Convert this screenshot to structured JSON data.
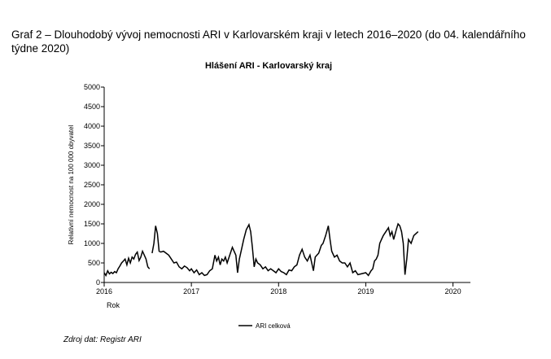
{
  "caption": "Graf 2 – Dlouhodobý vývoj nemocnosti ARI v Karlovarském kraji v letech 2016–2020 (do 04. kalendářního týdne 2020)",
  "source": "Zdroj dat: Registr ARI",
  "chart_data": {
    "type": "line",
    "title": "Hlášení ARI -  Karlovarský kraj",
    "x_label": "Rok",
    "y_label": "Relativní nemocnost na 100 000 obyvatel",
    "xlim": [
      2016,
      2020.2
    ],
    "xticks": [
      2016,
      2017,
      2018,
      2019,
      2020
    ],
    "ylim": [
      0,
      5000
    ],
    "yticks": [
      0,
      500,
      1000,
      1500,
      2000,
      2500,
      3000,
      3500,
      4000,
      4500,
      5000
    ],
    "grid": false,
    "legend": "bottom",
    "x": [
      2016,
      2016.02,
      2016.04,
      2016.06,
      2016.08,
      2016.1,
      2016.12,
      2016.14,
      2016.16,
      2016.18,
      2016.2,
      2016.22,
      2016.24,
      2016.26,
      2016.28,
      2016.3,
      2016.32,
      2016.34,
      2016.36,
      2016.38,
      2016.4,
      2016.42,
      2016.44,
      2016.46,
      2016.48,
      2016.5,
      2016.52,
      2016.535,
      2016.55,
      2016.57,
      2016.59,
      2016.61,
      2016.63,
      2016.65,
      2016.68,
      2016.71,
      2016.74,
      2016.77,
      2016.8,
      2016.83,
      2016.86,
      2016.89,
      2016.92,
      2016.95,
      2016.98,
      2017,
      2017.03,
      2017.06,
      2017.09,
      2017.12,
      2017.15,
      2017.18,
      2017.21,
      2017.24,
      2017.27,
      2017.29,
      2017.31,
      2017.33,
      2017.35,
      2017.37,
      2017.39,
      2017.41,
      2017.44,
      2017.47,
      2017.49,
      2017.51,
      2017.53,
      2017.55,
      2017.58,
      2017.6,
      2017.63,
      2017.66,
      2017.68,
      2017.7,
      2017.72,
      2017.74,
      2017.76,
      2017.79,
      2017.82,
      2017.85,
      2017.88,
      2017.91,
      2017.94,
      2017.97,
      2018,
      2018.03,
      2018.06,
      2018.09,
      2018.12,
      2018.15,
      2018.18,
      2018.21,
      2018.24,
      2018.27,
      2018.3,
      2018.33,
      2018.36,
      2018.38,
      2018.4,
      2018.42,
      2018.44,
      2018.46,
      2018.49,
      2018.51,
      2018.54,
      2018.57,
      2018.59,
      2018.61,
      2018.64,
      2018.67,
      2018.7,
      2018.73,
      2018.76,
      2018.79,
      2018.82,
      2018.85,
      2018.88,
      2018.91,
      2019,
      2019.03,
      2019.06,
      2019.08,
      2019.1,
      2019.12,
      2019.14,
      2019.16,
      2019.18,
      2019.2,
      2019.23,
      2019.26,
      2019.28,
      2019.3,
      2019.32,
      2019.35,
      2019.37,
      2019.39,
      2019.41,
      2019.43,
      2019.45,
      2019.47,
      2019.49,
      2019.52,
      2019.55,
      2019.6
    ],
    "series": [
      {
        "name": "ARI celková",
        "color": "#000000",
        "values": [
          250,
          180,
          300,
          220,
          260,
          230,
          280,
          250,
          350,
          420,
          500,
          550,
          600,
          450,
          620,
          500,
          650,
          600,
          720,
          780,
          560,
          650,
          800,
          700,
          600,
          400,
          350,
          null,
          750,
          1000,
          1450,
          1250,
          800,
          780,
          800,
          750,
          700,
          600,
          500,
          520,
          400,
          350,
          420,
          380,
          300,
          350,
          250,
          320,
          200,
          250,
          180,
          200,
          300,
          350,
          700,
          550,
          650,
          450,
          600,
          550,
          650,
          500,
          700,
          900,
          800,
          700,
          250,
          600,
          900,
          1100,
          1350,
          1480,
          1300,
          900,
          400,
          600,
          500,
          450,
          350,
          400,
          300,
          350,
          300,
          250,
          350,
          280,
          250,
          200,
          320,
          300,
          400,
          450,
          700,
          850,
          650,
          550,
          700,
          500,
          300,
          650,
          700,
          750,
          950,
          1000,
          1200,
          1450,
          1100,
          800,
          650,
          700,
          550,
          500,
          500,
          400,
          500,
          250,
          300,
          200,
          250,
          180,
          300,
          350,
          550,
          600,
          700,
          1000,
          1100,
          1200,
          1300,
          1400,
          1200,
          1300,
          1100,
          1350,
          1500,
          1450,
          1300,
          1000,
          200,
          600,
          1100,
          1000,
          1200,
          1300
        ]
      }
    ]
  }
}
